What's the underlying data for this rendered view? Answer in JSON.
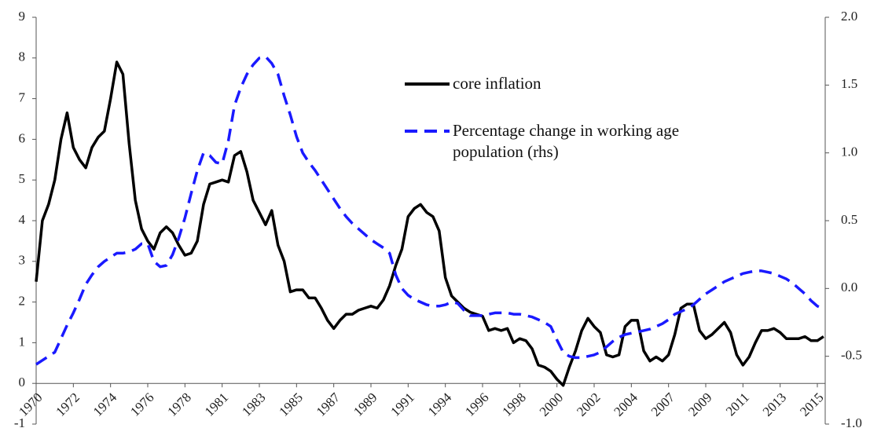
{
  "chart_data": {
    "type": "line",
    "categories": [
      "1970",
      null,
      null,
      null,
      null,
      null,
      "1972",
      null,
      null,
      null,
      null,
      null,
      "1974",
      null,
      null,
      null,
      null,
      null,
      "1976",
      null,
      null,
      null,
      null,
      null,
      "1978",
      null,
      null,
      null,
      null,
      null,
      "1981",
      null,
      null,
      null,
      null,
      null,
      "1983",
      null,
      null,
      null,
      null,
      null,
      "1985",
      null,
      null,
      null,
      null,
      null,
      "1987",
      null,
      null,
      null,
      null,
      null,
      "1989",
      null,
      null,
      null,
      null,
      null,
      "1991",
      null,
      null,
      null,
      null,
      null,
      "1994",
      null,
      null,
      null,
      null,
      null,
      "1996",
      null,
      null,
      null,
      null,
      null,
      "1998",
      null,
      null,
      null,
      null,
      null,
      "2000",
      null,
      null,
      null,
      null,
      null,
      "2002",
      null,
      null,
      null,
      null,
      null,
      "2004",
      null,
      null,
      null,
      null,
      null,
      "2007",
      null,
      null,
      null,
      null,
      null,
      "2009",
      null,
      null,
      null,
      null,
      null,
      "2011",
      null,
      null,
      null,
      null,
      null,
      "2013",
      null,
      null,
      null,
      null,
      null,
      "2015",
      null
    ],
    "series": [
      {
        "name": "core inflation",
        "color": "#000000",
        "dash": false,
        "values": [
          2.5,
          4.0,
          4.4,
          5.0,
          6.0,
          6.65,
          5.8,
          5.5,
          5.3,
          5.8,
          6.05,
          6.2,
          7.0,
          7.9,
          7.6,
          5.9,
          4.5,
          3.8,
          3.5,
          3.3,
          3.7,
          3.85,
          3.7,
          3.4,
          3.15,
          3.2,
          3.5,
          4.4,
          4.9,
          4.95,
          5.0,
          4.95,
          5.6,
          5.7,
          5.2,
          4.5,
          4.2,
          3.9,
          4.25,
          3.4,
          3.0,
          2.25,
          2.3,
          2.3,
          2.1,
          2.1,
          1.85,
          1.55,
          1.35,
          1.55,
          1.7,
          1.7,
          1.8,
          1.85,
          1.9,
          1.85,
          2.05,
          2.4,
          2.9,
          3.3,
          4.1,
          4.3,
          4.4,
          4.2,
          4.1,
          3.75,
          2.6,
          2.15,
          2.0,
          1.85,
          1.75,
          1.7,
          1.65,
          1.3,
          1.35,
          1.3,
          1.35,
          1.0,
          1.1,
          1.05,
          0.85,
          0.45,
          0.4,
          0.3,
          0.1,
          -0.05,
          0.4,
          0.8,
          1.3,
          1.6,
          1.4,
          1.25,
          0.7,
          0.65,
          0.7,
          1.4,
          1.55,
          1.55,
          0.8,
          0.55,
          0.65,
          0.55,
          0.7,
          1.2,
          1.85,
          1.95,
          1.95,
          1.3,
          1.1,
          1.2,
          1.35,
          1.5,
          1.25,
          0.7,
          0.45,
          0.65,
          1.0,
          1.3,
          1.3,
          1.35,
          1.25,
          1.1,
          1.1,
          1.1,
          1.15,
          1.05,
          1.05,
          1.15
        ]
      },
      {
        "name": "Percentage change in working age population (rhs)",
        "color": "#1a1aff",
        "dash": true,
        "axis": "y2",
        "values": [
          -0.56,
          -0.53,
          -0.5,
          -0.47,
          -0.37,
          -0.27,
          -0.18,
          -0.08,
          0.03,
          0.1,
          0.16,
          0.2,
          0.23,
          0.26,
          0.26,
          0.27,
          0.29,
          0.33,
          0.33,
          0.2,
          0.16,
          0.17,
          0.25,
          0.37,
          0.52,
          0.7,
          0.87,
          1.0,
          0.98,
          0.93,
          0.92,
          1.09,
          1.35,
          1.48,
          1.58,
          1.65,
          1.7,
          1.71,
          1.66,
          1.58,
          1.42,
          1.28,
          1.12,
          1.0,
          0.93,
          0.87,
          0.8,
          0.73,
          0.66,
          0.59,
          0.53,
          0.48,
          0.44,
          0.4,
          0.36,
          0.33,
          0.3,
          0.26,
          0.1,
          0.0,
          -0.05,
          -0.08,
          -0.1,
          -0.12,
          -0.13,
          -0.13,
          -0.12,
          -0.1,
          -0.11,
          -0.16,
          -0.2,
          -0.2,
          -0.2,
          -0.19,
          -0.18,
          -0.18,
          -0.18,
          -0.19,
          -0.19,
          -0.2,
          -0.21,
          -0.23,
          -0.25,
          -0.28,
          -0.38,
          -0.47,
          -0.5,
          -0.51,
          -0.51,
          -0.5,
          -0.49,
          -0.47,
          -0.43,
          -0.39,
          -0.36,
          -0.34,
          -0.33,
          -0.32,
          -0.31,
          -0.3,
          -0.28,
          -0.26,
          -0.23,
          -0.19,
          -0.17,
          -0.15,
          -0.12,
          -0.08,
          -0.04,
          -0.01,
          0.02,
          0.05,
          0.07,
          0.09,
          0.11,
          0.12,
          0.13,
          0.13,
          0.12,
          0.11,
          0.09,
          0.07,
          0.04,
          0.0,
          -0.04,
          -0.09,
          -0.13,
          -0.15
        ]
      }
    ],
    "ylim": [
      -1,
      9
    ],
    "yticks": [
      -1,
      0,
      1,
      2,
      3,
      4,
      5,
      6,
      7,
      8,
      9
    ],
    "y2lim": [
      -1,
      2
    ],
    "y2ticks": [
      {
        "value": -1,
        "label": "-1.0"
      },
      -0.5,
      {
        "value": 0,
        "label": "0.0"
      },
      0.5,
      {
        "value": 1,
        "label": "1.0"
      },
      1.5,
      {
        "value": 2,
        "label": "2.0"
      }
    ],
    "grid": false
  }
}
